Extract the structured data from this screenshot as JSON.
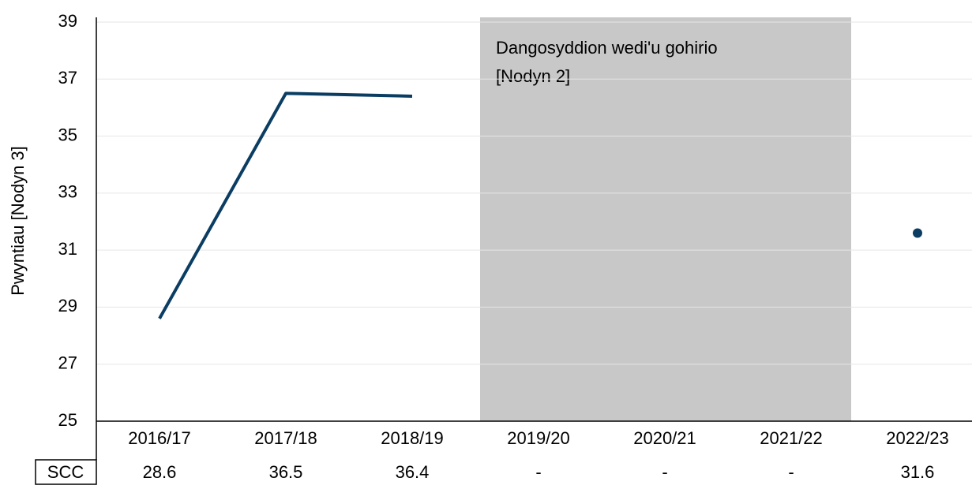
{
  "chart_data": {
    "type": "line",
    "ylabel": "Pwyntiau [Nodyn 3]",
    "categories": [
      "2016/17",
      "2017/18",
      "2018/19",
      "2019/20",
      "2020/21",
      "2021/22",
      "2022/23"
    ],
    "series": [
      {
        "name": "SCC",
        "color": "#0b3d63",
        "values": [
          28.6,
          36.5,
          36.4,
          null,
          null,
          null,
          31.6
        ],
        "value_labels": [
          "28.6",
          "36.5",
          "36.4",
          "-",
          "-",
          "-",
          "31.6"
        ]
      }
    ],
    "ylim": [
      25,
      39
    ],
    "yticks": [
      25,
      27,
      29,
      31,
      33,
      35,
      37,
      39
    ],
    "grid": true,
    "shaded_range": [
      "2019/20",
      "2021/22"
    ],
    "annotation": [
      "Dangosyddion wedi'u gohirio",
      "[Nodyn 2]"
    ]
  }
}
